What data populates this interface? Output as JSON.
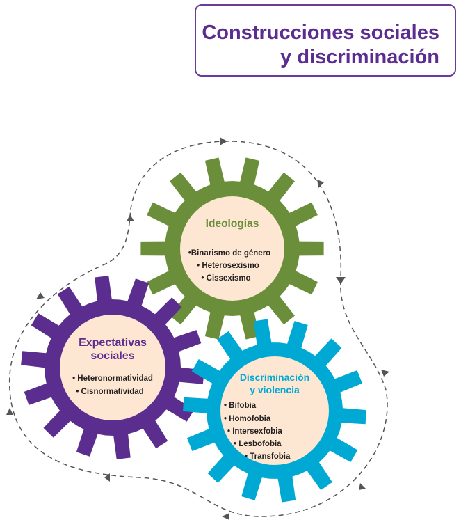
{
  "title": {
    "line1": "Construcciones sociales",
    "line2": "y discriminación"
  },
  "colors": {
    "title": "#5c2d91",
    "title_border": "#6b3a9a",
    "gear_ideologias": "#6b8e3a",
    "gear_expectativas": "#5b2d8e",
    "gear_discriminacion": "#00a9d4",
    "gear_center": "#fde6d2",
    "cycle_line": "#555555"
  },
  "gears": {
    "ideologias": {
      "title": "Ideologías",
      "items": [
        "•Binarismo de género",
        "• Heterosexismo",
        "• Cissexismo"
      ]
    },
    "expectativas": {
      "title_line1": "Expectativas",
      "title_line2": "sociales",
      "items": [
        "• Heteronormatividad",
        "• Cisnormatividad"
      ]
    },
    "discriminacion": {
      "title_line1": "Discriminación",
      "title_line2": "y violencia",
      "items": [
        "• Bifobia",
        "• Homofobia",
        "• Intersexfobia",
        "• Lesbofobia",
        "• Transfobia"
      ]
    }
  }
}
